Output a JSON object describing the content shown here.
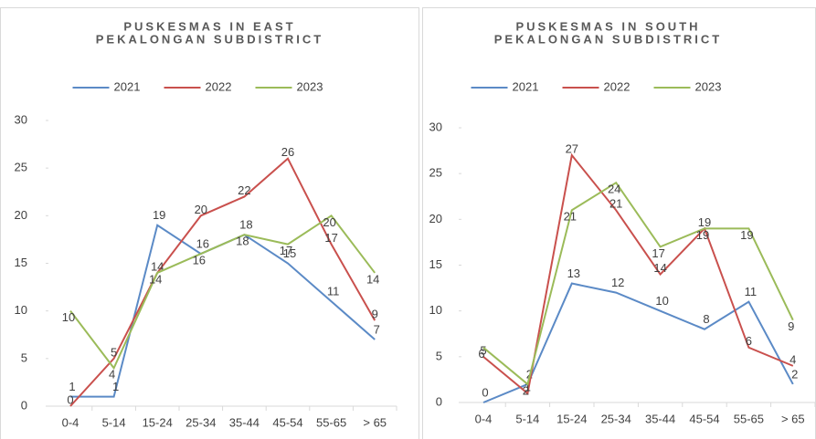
{
  "chart_data": [
    {
      "type": "line",
      "title_lines": [
        "PUSKESMAS IN EAST",
        "PEKALONGAN SUBDISTRICT"
      ],
      "categories": [
        "0-4",
        "5-14",
        "15-24",
        "25-34",
        "35-44",
        "45-54",
        "55-65",
        "> 65"
      ],
      "series": [
        {
          "name": "2021",
          "color": "#5b8ac6",
          "values": [
            1,
            1,
            19,
            16,
            18,
            15,
            11,
            7
          ]
        },
        {
          "name": "2022",
          "color": "#c9504d",
          "values": [
            0,
            5,
            14,
            20,
            22,
            26,
            17,
            9
          ]
        },
        {
          "name": "2023",
          "color": "#9bbb59",
          "values": [
            10,
            4,
            14,
            16,
            18,
            17,
            20,
            14
          ]
        }
      ],
      "ylim": [
        0,
        30
      ],
      "yticks": [
        0,
        5,
        10,
        15,
        20,
        25,
        30
      ],
      "legend": "top"
    },
    {
      "type": "line",
      "title_lines": [
        "PUSKESMAS IN SOUTH",
        "PEKALONGAN SUBDISTRICT"
      ],
      "categories": [
        "0-4",
        "5-14",
        "15-24",
        "25-34",
        "35-44",
        "45-54",
        "55-65",
        "> 65"
      ],
      "series": [
        {
          "name": "2021",
          "color": "#5b8ac6",
          "values": [
            0,
            2,
            13,
            12,
            10,
            8,
            11,
            2
          ]
        },
        {
          "name": "2022",
          "color": "#c9504d",
          "values": [
            5,
            1,
            27,
            21,
            14,
            19,
            6,
            4
          ]
        },
        {
          "name": "2023",
          "color": "#9bbb59",
          "values": [
            6,
            2,
            21,
            24,
            17,
            19,
            19,
            9
          ]
        }
      ],
      "ylim": [
        0,
        30
      ],
      "yticks": [
        0,
        5,
        10,
        15,
        20,
        25,
        30
      ],
      "legend": "top"
    }
  ]
}
